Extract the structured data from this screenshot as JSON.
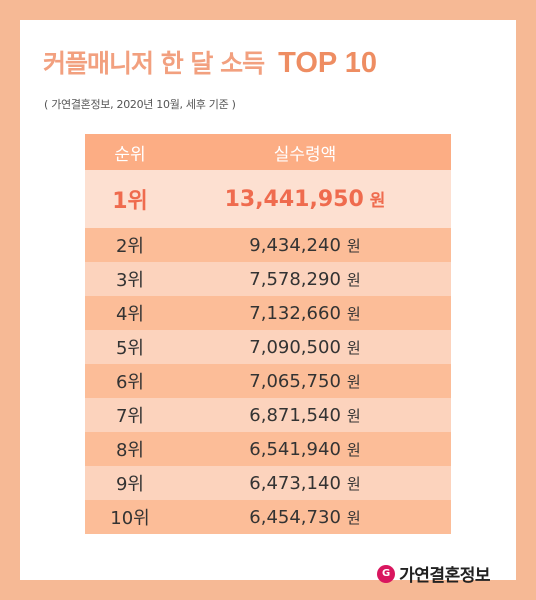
{
  "title": {
    "main": "커플매니저 한 달 소득",
    "highlight": "TOP 10"
  },
  "subtitle": "( 가연결혼정보, 2020년 10월, 세후 기준 )",
  "table": {
    "headers": {
      "rank": "순위",
      "amount": "실수령액"
    },
    "rows": [
      {
        "rank": "1위",
        "amount": "13,441,950",
        "unit": "원"
      },
      {
        "rank": "2위",
        "amount": "9,434,240",
        "unit": "원"
      },
      {
        "rank": "3위",
        "amount": "7,578,290",
        "unit": "원"
      },
      {
        "rank": "4위",
        "amount": "7,132,660",
        "unit": "원"
      },
      {
        "rank": "5위",
        "amount": "7,090,500",
        "unit": "원"
      },
      {
        "rank": "6위",
        "amount": "7,065,750",
        "unit": "원"
      },
      {
        "rank": "7위",
        "amount": "6,871,540",
        "unit": "원"
      },
      {
        "rank": "8위",
        "amount": "6,541,940",
        "unit": "원"
      },
      {
        "rank": "9위",
        "amount": "6,473,140",
        "unit": "원"
      },
      {
        "rank": "10위",
        "amount": "6,454,730",
        "unit": "원"
      }
    ]
  },
  "logo": {
    "text": "가연결혼정보",
    "icon": "brand-g-icon",
    "color": "#d9165f"
  },
  "colors": {
    "background": "#f6b995",
    "header_row": "#fcad84",
    "first_row": "#fde0d1",
    "row_light": "#fcd3bd",
    "row_dark": "#fcbd98",
    "accent_text": "#ef6b4e"
  }
}
